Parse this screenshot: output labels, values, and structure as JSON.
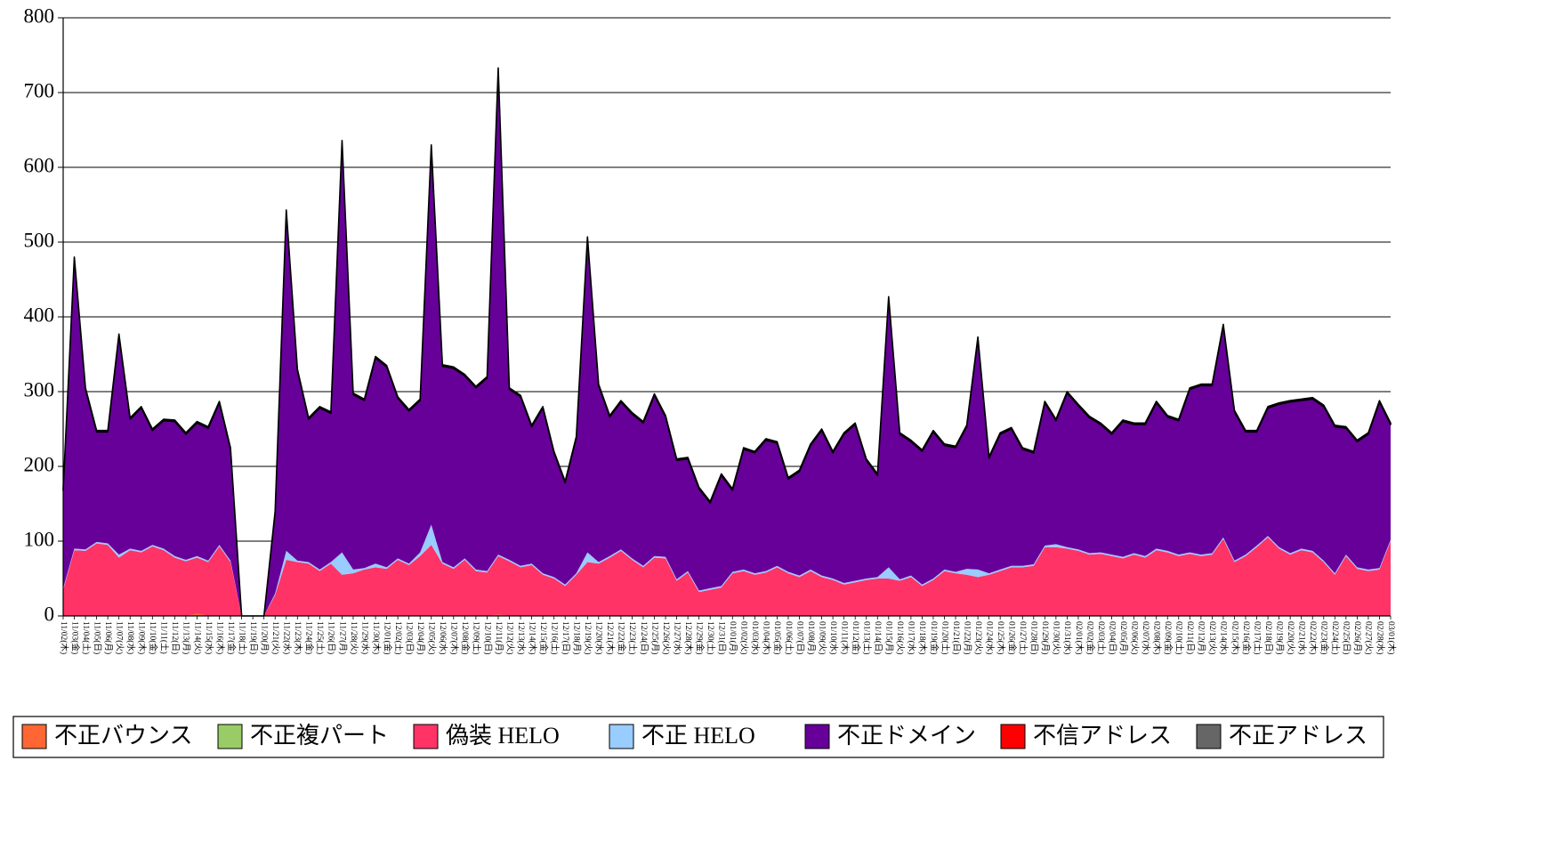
{
  "chart_data": {
    "type": "stacked-area",
    "categories": [
      "11/02(木)",
      "11/03(金)",
      "11/04(土)",
      "11/05(日)",
      "11/06(月)",
      "11/07(火)",
      "11/08(水)",
      "11/09(木)",
      "11/10(金)",
      "11/11(土)",
      "11/12(日)",
      "11/13(月)",
      "11/14(火)",
      "11/15(水)",
      "11/16(木)",
      "11/17(金)",
      "11/18(土)",
      "11/19(日)",
      "11/20(月)",
      "11/21(火)",
      "11/22(水)",
      "11/23(木)",
      "11/24(金)",
      "11/25(土)",
      "11/26(日)",
      "11/27(月)",
      "11/28(火)",
      "11/29(水)",
      "11/30(木)",
      "12/01(金)",
      "12/02(土)",
      "12/03(日)",
      "12/04(月)",
      "12/05(火)",
      "12/06(水)",
      "12/07(木)",
      "12/08(金)",
      "12/09(土)",
      "12/10(日)",
      "12/11(月)",
      "12/12(火)",
      "12/13(水)",
      "12/14(木)",
      "12/15(金)",
      "12/16(土)",
      "12/17(日)",
      "12/18(月)",
      "12/19(火)",
      "12/20(水)",
      "12/21(木)",
      "12/22(金)",
      "12/23(土)",
      "12/24(日)",
      "12/25(月)",
      "12/26(火)",
      "12/27(水)",
      "12/28(木)",
      "12/29(金)",
      "12/30(土)",
      "12/31(日)",
      "01/01(月)",
      "01/02(火)",
      "01/03(水)",
      "01/04(木)",
      "01/05(金)",
      "01/06(土)",
      "01/07(日)",
      "01/08(月)",
      "01/09(火)",
      "01/10(水)",
      "01/11(木)",
      "01/12(金)",
      "01/13(土)",
      "01/14(日)",
      "01/15(月)",
      "01/16(火)",
      "01/17(水)",
      "01/18(木)",
      "01/19(金)",
      "01/20(土)",
      "01/21(日)",
      "01/22(月)",
      "01/23(火)",
      "01/24(水)",
      "01/25(木)",
      "01/26(金)",
      "01/27(土)",
      "01/28(日)",
      "01/29(月)",
      "01/30(火)",
      "01/31(水)",
      "02/01(木)",
      "02/02(金)",
      "02/03(土)",
      "02/04(日)",
      "02/05(月)",
      "02/06(火)",
      "02/07(水)",
      "02/08(木)",
      "02/09(金)",
      "02/10(土)",
      "02/11(日)",
      "02/12(月)",
      "02/13(火)",
      "02/14(水)",
      "02/15(木)",
      "02/16(金)",
      "02/17(土)",
      "02/18(日)",
      "02/19(月)",
      "02/20(火)",
      "02/21(水)",
      "02/22(木)",
      "02/23(金)",
      "02/24(土)",
      "02/25(日)",
      "02/26(月)",
      "02/27(火)",
      "02/28(水)",
      "03/01(木)"
    ],
    "series": [
      {
        "name": "不正バウンス",
        "color": "#ff6633",
        "values": [
          0,
          0,
          0,
          0,
          0,
          0,
          0,
          0,
          0,
          0,
          0,
          0,
          3,
          0,
          0,
          0,
          0,
          0,
          0,
          0,
          0,
          0,
          0,
          0,
          0,
          0,
          0,
          0,
          0,
          0,
          0,
          0,
          0,
          0,
          0,
          0,
          0,
          0,
          0,
          2,
          0,
          0,
          0,
          0,
          0,
          0,
          0,
          0,
          0,
          0,
          0,
          0,
          0,
          0,
          0,
          0,
          0,
          0,
          0,
          0,
          0,
          0,
          0,
          0,
          0,
          0,
          0,
          0,
          0,
          0,
          0,
          0,
          0,
          0,
          0,
          0,
          0,
          0,
          0,
          0,
          0,
          0,
          0,
          0,
          0,
          0,
          0,
          0,
          0,
          0,
          0,
          0,
          0,
          0,
          0,
          0,
          0,
          0,
          0,
          0,
          0,
          0,
          0,
          0,
          0,
          0,
          0,
          0,
          0,
          0,
          0,
          0,
          0,
          0,
          0,
          0,
          0,
          0,
          0,
          0
        ]
      },
      {
        "name": "不正複パート",
        "color": "#99cc66",
        "values": [
          0,
          0,
          0,
          0,
          0,
          0,
          0,
          0,
          0,
          0,
          0,
          0,
          0,
          0,
          0,
          0,
          0,
          0,
          0,
          0,
          0,
          0,
          0,
          0,
          0,
          0,
          0,
          0,
          0,
          0,
          0,
          0,
          0,
          0,
          0,
          0,
          0,
          0,
          0,
          0,
          0,
          0,
          0,
          0,
          0,
          0,
          0,
          0,
          0,
          0,
          0,
          0,
          0,
          0,
          0,
          0,
          0,
          0,
          0,
          0,
          0,
          0,
          0,
          0,
          0,
          0,
          0,
          0,
          0,
          0,
          0,
          0,
          0,
          0,
          0,
          0,
          0,
          0,
          0,
          0,
          0,
          0,
          0,
          0,
          0,
          0,
          0,
          0,
          0,
          0,
          0,
          0,
          0,
          0,
          0,
          0,
          0,
          0,
          0,
          0,
          0,
          0,
          0,
          0,
          0,
          0,
          0,
          0,
          0,
          0,
          0,
          0,
          0,
          0,
          0,
          0,
          0,
          0,
          0,
          0
        ]
      },
      {
        "name": "偽装 HELO",
        "color": "#ff3366",
        "values": [
          35,
          88,
          87,
          97,
          95,
          78,
          88,
          85,
          93,
          88,
          78,
          73,
          75,
          72,
          93,
          72,
          0,
          0,
          0,
          28,
          75,
          72,
          70,
          60,
          70,
          55,
          57,
          62,
          65,
          63,
          75,
          68,
          80,
          95,
          70,
          63,
          75,
          60,
          58,
          78,
          73,
          65,
          68,
          55,
          50,
          40,
          55,
          72,
          70,
          78,
          87,
          75,
          65,
          78,
          77,
          47,
          58,
          32,
          35,
          38,
          57,
          60,
          55,
          58,
          65,
          57,
          52,
          60,
          52,
          48,
          42,
          45,
          48,
          50,
          50,
          47,
          52,
          40,
          48,
          60,
          57,
          55,
          52,
          55,
          60,
          65,
          65,
          67,
          92,
          92,
          90,
          87,
          82,
          83,
          80,
          77,
          82,
          78,
          88,
          85,
          80,
          83,
          80,
          82,
          103,
          72,
          80,
          92,
          105,
          90,
          82,
          88,
          85,
          72,
          55,
          80,
          63,
          60,
          62,
          100
        ]
      },
      {
        "name": "不正 HELO",
        "color": "#99ccff",
        "values": [
          2,
          2,
          2,
          2,
          2,
          4,
          2,
          2,
          2,
          2,
          2,
          2,
          2,
          2,
          2,
          2,
          0,
          0,
          0,
          2,
          12,
          2,
          2,
          2,
          2,
          30,
          5,
          2,
          5,
          2,
          2,
          2,
          5,
          27,
          2,
          2,
          2,
          2,
          2,
          2,
          2,
          2,
          2,
          2,
          2,
          2,
          2,
          13,
          2,
          2,
          2,
          2,
          2,
          2,
          2,
          2,
          2,
          2,
          2,
          2,
          2,
          2,
          2,
          2,
          2,
          2,
          2,
          2,
          2,
          2,
          2,
          2,
          2,
          2,
          15,
          2,
          2,
          2,
          2,
          2,
          2,
          8,
          10,
          2,
          2,
          2,
          2,
          2,
          2,
          4,
          2,
          2,
          2,
          2,
          2,
          2,
          2,
          2,
          2,
          2,
          2,
          2,
          2,
          2,
          2,
          2,
          2,
          2,
          2,
          2,
          2,
          2,
          2,
          2,
          2,
          2,
          2,
          2,
          2,
          2
        ]
      },
      {
        "name": "不正ドメイン",
        "color": "#660099",
        "values": [
          131,
          388,
          214,
          147,
          149,
          293,
          173,
          191,
          153,
          171,
          180,
          168,
          178,
          177,
          190,
          149,
          0,
          0,
          0,
          108,
          454,
          254,
          191,
          216,
          199,
          549,
          234,
          224,
          275,
          268,
          214,
          204,
          203,
          506,
          262,
          266,
          244,
          243,
          258,
          649,
          228,
          226,
          183,
          221,
          166,
          136,
          181,
          420,
          236,
          186,
          197,
          193,
          191,
          215,
          187,
          159,
          150,
          136,
          114,
          148,
          109,
          161,
          161,
          175,
          164,
          124,
          139,
          166,
          194,
          168,
          199,
          209,
          158,
          136,
          360,
          194,
          179,
          178,
          196,
          166,
          166,
          190,
          309,
          154,
          181,
          183,
          156,
          149,
          191,
          165,
          206,
          192,
          181,
          171,
          161,
          181,
          172,
          176,
          195,
          179,
          179,
          218,
          226,
          224,
          283,
          199,
          164,
          152,
          171,
          191,
          202,
          198,
          203,
          206,
          196,
          169,
          168,
          181,
          222,
          154
        ]
      },
      {
        "name": "不信アドレス",
        "color": "#ff0000",
        "values": [
          0,
          0,
          0,
          0,
          0,
          0,
          0,
          0,
          0,
          0,
          0,
          0,
          0,
          0,
          0,
          0,
          0,
          0,
          0,
          0,
          0,
          0,
          0,
          0,
          0,
          0,
          0,
          0,
          0,
          0,
          0,
          0,
          0,
          0,
          0,
          0,
          0,
          0,
          0,
          0,
          0,
          0,
          0,
          0,
          0,
          0,
          0,
          0,
          0,
          0,
          0,
          0,
          0,
          0,
          0,
          0,
          0,
          0,
          0,
          0,
          0,
          0,
          0,
          0,
          0,
          0,
          0,
          0,
          0,
          0,
          0,
          0,
          0,
          0,
          0,
          0,
          0,
          0,
          0,
          0,
          0,
          0,
          0,
          0,
          0,
          0,
          0,
          0,
          0,
          0,
          0,
          0,
          0,
          0,
          0,
          0,
          0,
          0,
          0,
          0,
          0,
          0,
          0,
          0,
          0,
          0,
          0,
          0,
          0,
          0,
          0,
          0,
          0,
          0,
          0,
          0,
          0,
          0,
          0,
          0
        ]
      },
      {
        "name": "不正アドレス",
        "color": "#666666",
        "values": [
          2,
          2,
          2,
          2,
          2,
          2,
          2,
          2,
          2,
          2,
          2,
          2,
          2,
          2,
          2,
          2,
          0,
          0,
          0,
          2,
          2,
          2,
          2,
          2,
          2,
          2,
          2,
          2,
          2,
          2,
          2,
          2,
          2,
          2,
          2,
          2,
          2,
          2,
          2,
          2,
          2,
          2,
          2,
          2,
          2,
          2,
          2,
          2,
          2,
          2,
          2,
          2,
          2,
          2,
          2,
          2,
          2,
          2,
          2,
          2,
          2,
          2,
          2,
          2,
          2,
          2,
          2,
          2,
          2,
          2,
          2,
          2,
          2,
          2,
          2,
          2,
          2,
          2,
          2,
          2,
          2,
          2,
          2,
          2,
          2,
          2,
          2,
          2,
          2,
          2,
          2,
          2,
          2,
          2,
          2,
          2,
          2,
          2,
          2,
          2,
          2,
          2,
          2,
          2,
          2,
          2,
          2,
          2,
          2,
          2,
          2,
          2,
          2,
          2,
          2,
          2,
          2,
          2,
          2,
          2
        ]
      }
    ],
    "ylim": [
      0,
      800
    ],
    "yticks": [
      0,
      100,
      200,
      300,
      400,
      500,
      600,
      700,
      800
    ],
    "grid": true,
    "legend": "bottom"
  }
}
